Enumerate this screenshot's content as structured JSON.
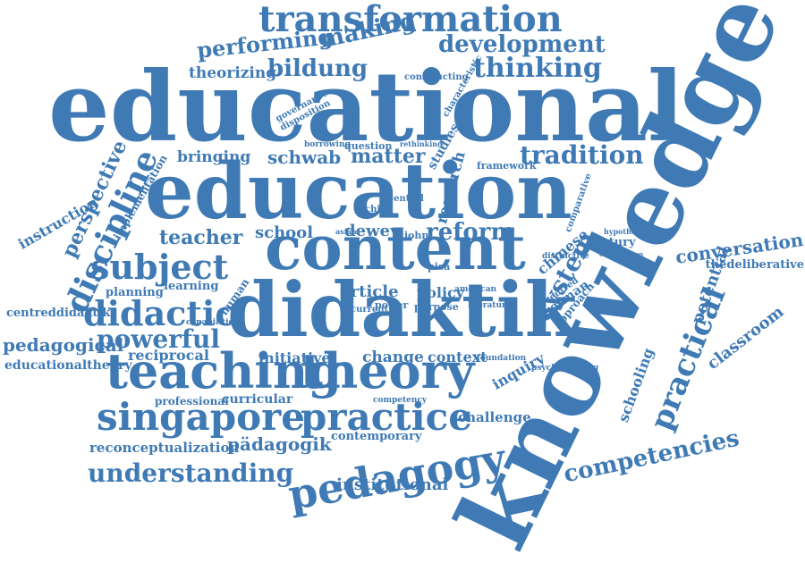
{
  "word_cloud": {
    "color": "#3f7ab5",
    "words": [
      "transformation",
      "performing",
      "making",
      "development",
      "theorizing",
      "bildung",
      "thinking",
      "educational",
      "knowledge",
      "education",
      "content",
      "didaktik",
      "teaching",
      "theory",
      "singapore",
      "practice",
      "pedagogy",
      "subject",
      "didactic",
      "discipline",
      "perspective",
      "instruction",
      "implementation",
      "bringing",
      "schwab",
      "matter",
      "tradition",
      "teacher",
      "school",
      "dewey",
      "reform",
      "system",
      "practical",
      "competencies",
      "conversation",
      "thedeliberative",
      "potential",
      "classroom",
      "schooling",
      "powerful",
      "pedagogical",
      "centreddidaktik",
      "educationaltheory",
      "reciprocal",
      "planning",
      "article",
      "policy",
      "initiative",
      "change",
      "context",
      "inquiry",
      "professional",
      "curricular",
      "challenge",
      "reconceptualization",
      "pädagogik",
      "understanding",
      "institutional",
      "contemporary",
      "chinese",
      "century",
      "german",
      "question",
      "studies",
      "research",
      "framework",
      "constructing",
      "governance",
      "disposition",
      "learning",
      "human",
      "central",
      "china",
      "pisa",
      "john",
      "power",
      "literature",
      "foundation",
      "psychologizing",
      "comparative",
      "approach",
      "competency",
      "distinctive",
      "centred",
      "capabilities",
      "asian",
      "purpose",
      "current",
      "american",
      "hypothesis",
      "contribution",
      "characteristic",
      "borrowing",
      "rethinking"
    ]
  }
}
